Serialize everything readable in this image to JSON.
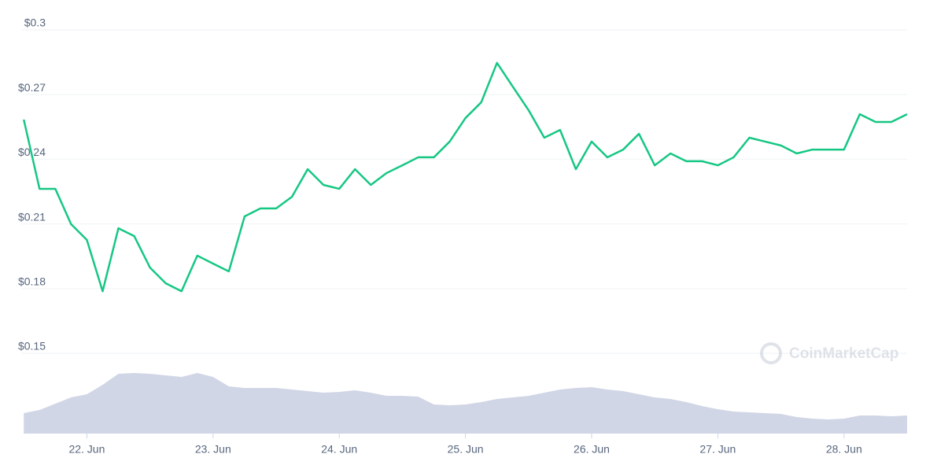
{
  "chart_data": {
    "type": "line",
    "x": [
      21.5,
      21.625,
      21.75,
      21.875,
      22.0,
      22.125,
      22.25,
      22.375,
      22.5,
      22.625,
      22.75,
      22.875,
      23.0,
      23.125,
      23.25,
      23.375,
      23.5,
      23.625,
      23.75,
      23.875,
      24.0,
      24.125,
      24.25,
      24.375,
      24.5,
      24.625,
      24.75,
      24.875,
      25.0,
      25.125,
      25.25,
      25.375,
      25.5,
      25.625,
      25.75,
      25.875,
      26.0,
      26.125,
      26.25,
      26.375,
      26.5,
      26.625,
      26.75,
      26.875,
      27.0,
      27.125,
      27.25,
      27.375,
      27.5,
      27.625,
      27.75,
      27.875,
      28.0,
      28.125,
      28.25,
      28.375,
      28.5
    ],
    "series": [
      {
        "color": "#16c784",
        "values": [
          0.2584,
          0.2263,
          0.2263,
          0.2099,
          0.2026,
          0.1788,
          0.208,
          0.2044,
          0.1898,
          0.1825,
          0.1788,
          0.1953,
          0.1916,
          0.188,
          0.2135,
          0.2172,
          0.2172,
          0.2226,
          0.2354,
          0.2281,
          0.2263,
          0.2354,
          0.2281,
          0.2336,
          0.2372,
          0.2409,
          0.2409,
          0.2482,
          0.2591,
          0.2664,
          0.2847,
          0.2737,
          0.2628,
          0.25,
          0.2536,
          0.2354,
          0.2482,
          0.2409,
          0.2445,
          0.2518,
          0.2372,
          0.2427,
          0.2391,
          0.2391,
          0.2372,
          0.2409,
          0.25,
          0.2482,
          0.2464,
          0.2427,
          0.2445,
          0.2445,
          0.2445,
          0.2609,
          0.2573,
          0.2573,
          0.2609
        ]
      }
    ],
    "volume": {
      "color": "#d1d6e6",
      "ylim": [
        0,
        100
      ],
      "values": [
        26,
        30,
        38,
        46,
        50,
        62,
        76,
        77,
        76,
        74,
        72,
        77,
        72,
        60,
        58,
        58,
        58,
        56,
        54,
        52,
        53,
        55,
        52,
        48,
        48,
        47,
        37,
        36,
        37,
        40,
        44,
        46,
        48,
        52,
        56,
        58,
        59,
        56,
        54,
        50,
        46,
        44,
        40,
        35,
        31,
        28,
        27,
        26,
        25,
        21,
        19,
        18,
        19,
        23,
        23,
        22,
        23
      ]
    },
    "xlim": [
      21.48,
      28.5
    ],
    "xticks": [
      {
        "value": 22,
        "label": "22. Jun"
      },
      {
        "value": 23,
        "label": "23. Jun"
      },
      {
        "value": 24,
        "label": "24. Jun"
      },
      {
        "value": 25,
        "label": "25. Jun"
      },
      {
        "value": 26,
        "label": "26. Jun"
      },
      {
        "value": 27,
        "label": "27. Jun"
      },
      {
        "value": 28,
        "label": "28. Jun"
      }
    ],
    "ylim": [
      0.15,
      0.3
    ],
    "yticks": [
      {
        "value": 0.15,
        "label": "$0.15"
      },
      {
        "value": 0.18,
        "label": "$0.18"
      },
      {
        "value": 0.21,
        "label": "$0.21"
      },
      {
        "value": 0.24,
        "label": "$0.24"
      },
      {
        "value": 0.27,
        "label": "$0.27"
      },
      {
        "value": 0.3,
        "label": "$0.3"
      }
    ],
    "grid": true,
    "watermark": "CoinMarketCap"
  }
}
